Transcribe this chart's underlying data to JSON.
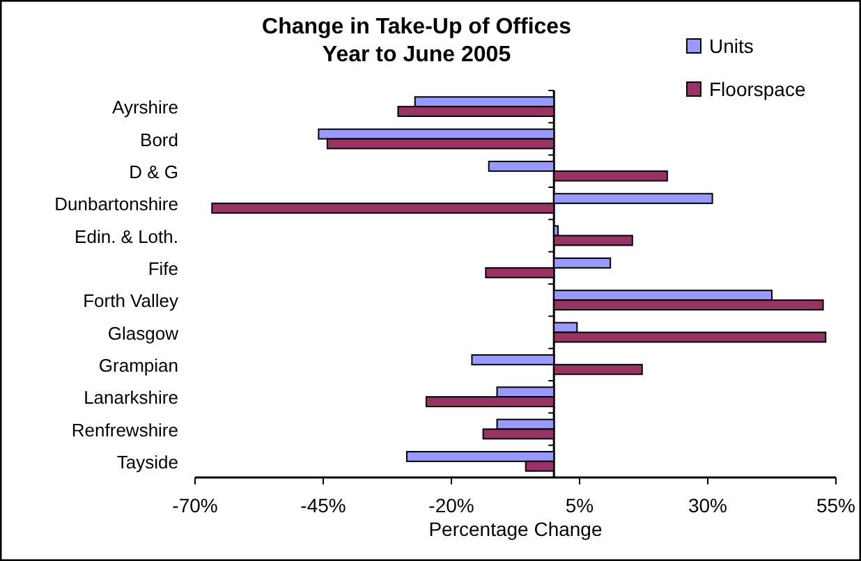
{
  "chart_data": {
    "type": "bar",
    "orientation": "horizontal",
    "title": "Change in Take-Up of Offices",
    "subtitle": "Year to June 2005",
    "xlabel": "Percentage Change",
    "categories": [
      "Ayrshire",
      "Bord",
      "D & G",
      "Dunbartonshire",
      "Edin. & Loth.",
      "Fife",
      "Forth Valley",
      "Glasgow",
      "Grampian",
      "Lanarkshire",
      "Renfrewshire",
      "Tayside"
    ],
    "series": [
      {
        "name": "Units",
        "color": "#9999ff",
        "values": [
          -27.1,
          -45.9,
          -12.7,
          30.9,
          0.8,
          11.0,
          42.5,
          4.5,
          -16.0,
          -11.1,
          -11.1,
          -28.7
        ]
      },
      {
        "name": "Floorspace",
        "color": "#993366",
        "values": [
          -30.4,
          -44.2,
          22.1,
          -66.7,
          15.3,
          -13.3,
          52.5,
          53.0,
          17.2,
          -24.9,
          -13.8,
          -5.5
        ]
      }
    ],
    "xlim": [
      -70,
      55
    ],
    "xticks": [
      {
        "value": -70,
        "label": "-70%"
      },
      {
        "value": -45,
        "label": "-45%"
      },
      {
        "value": -20,
        "label": "-20%"
      },
      {
        "value": 5,
        "label": "5%"
      },
      {
        "value": 30,
        "label": "30%"
      },
      {
        "value": 55,
        "label": "55%"
      }
    ],
    "grid": false,
    "legend": "top right"
  }
}
